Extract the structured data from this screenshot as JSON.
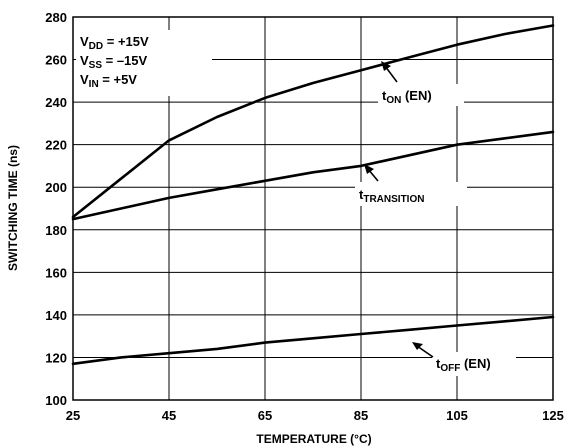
{
  "chart_data": {
    "type": "line",
    "xlabel": "TEMPERATURE (°C)",
    "ylabel": "SWITCHING TIME (ns)",
    "xlim": [
      25,
      125
    ],
    "ylim": [
      100,
      280
    ],
    "xticks": [
      25,
      45,
      65,
      85,
      105,
      125
    ],
    "yticks": [
      100,
      120,
      140,
      160,
      180,
      200,
      220,
      240,
      260,
      280
    ],
    "grid": true,
    "conditions": [
      {
        "main": "V",
        "sub": "DD",
        "rest": " = +15V"
      },
      {
        "main": "V",
        "sub": "SS",
        "rest": " = –15V"
      },
      {
        "main": "V",
        "sub": "IN",
        "rest": " = +5V"
      }
    ],
    "series": [
      {
        "label_main": "t",
        "label_sub": "ON",
        "label_suffix": " (EN)",
        "x": [
          25,
          35,
          45,
          55,
          65,
          75,
          85,
          95,
          105,
          115,
          125
        ],
        "y": [
          186,
          204,
          222,
          233,
          242,
          249,
          255,
          261,
          267,
          272,
          276
        ]
      },
      {
        "label_main": "t",
        "label_sub": "TRANSITION",
        "label_suffix": "",
        "x": [
          25,
          35,
          45,
          55,
          65,
          75,
          85,
          95,
          105,
          115,
          125
        ],
        "y": [
          185,
          190,
          195,
          199,
          203,
          207,
          210,
          215,
          220,
          223,
          226
        ]
      },
      {
        "label_main": "t",
        "label_sub": "OFF",
        "label_suffix": " (EN)",
        "x": [
          25,
          35,
          45,
          55,
          65,
          75,
          85,
          95,
          105,
          115,
          125
        ],
        "y": [
          117,
          120,
          122,
          124,
          127,
          129,
          131,
          133,
          135,
          137,
          139
        ]
      }
    ]
  }
}
